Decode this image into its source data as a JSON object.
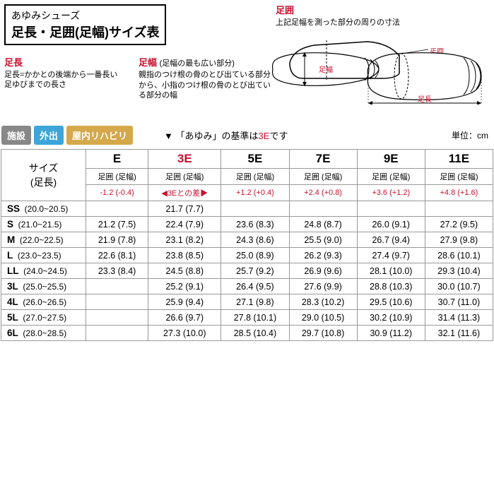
{
  "header": {
    "small": "あゆみシューズ",
    "big": "足長・足囲(足幅)サイズ表"
  },
  "labels": {
    "ashikei_title": "足囲",
    "ashikei_desc": "上記足幅を測った部分の周りの寸法",
    "ashicho_title": "足長",
    "ashicho_desc": "足長=かかとの後端から一番長い足ゆびまでの長さ",
    "ashihaba_title": "足幅",
    "ashihaba_note": "(足幅の最も広い部分)",
    "ashihaba_desc": "親指のつけ根の骨のとび出ている部分から、小指のつけ根の骨のとび出ている部分の幅",
    "diagram_ashihaba": "足幅",
    "diagram_ashikei": "足囲",
    "diagram_ashicho": "足長"
  },
  "badges": {
    "b1": "施設",
    "b2": "外出",
    "b3": "屋内リハビリ"
  },
  "badges_note_pre": "▼ 「あゆみ」の基準は",
  "badges_note_red": "3E",
  "badges_note_post": "です",
  "unit": "単位：cm",
  "column_header_label": "サイズ\n(足長)",
  "column_sub": "足囲 (足幅)",
  "column_diff_marker": "◀3Eとの差▶",
  "widths": [
    "E",
    "3E",
    "5E",
    "7E",
    "9E",
    "11E"
  ],
  "diffs": [
    "-1.2 (-0.4)",
    "",
    "+1.2 (+0.4)",
    "+2.4 (+0.8)",
    "+3.6 (+1.2)",
    "+4.8 (+1.6)"
  ],
  "size_rows": [
    {
      "code": "SS",
      "range": "(20.0~20.5)",
      "vals": [
        "",
        "21.7 (7.7)",
        "",
        "",
        "",
        ""
      ]
    },
    {
      "code": "S",
      "range": "(21.0~21.5)",
      "vals": [
        "21.2 (7.5)",
        "22.4 (7.9)",
        "23.6 (8.3)",
        "24.8 (8.7)",
        "26.0 (9.1)",
        "27.2 (9.5)"
      ]
    },
    {
      "code": "M",
      "range": "(22.0~22.5)",
      "vals": [
        "21.9 (7.8)",
        "23.1 (8.2)",
        "24.3 (8.6)",
        "25.5 (9.0)",
        "26.7 (9.4)",
        "27.9 (9.8)"
      ]
    },
    {
      "code": "L",
      "range": "(23.0~23.5)",
      "vals": [
        "22.6 (8.1)",
        "23.8 (8.5)",
        "25.0 (8.9)",
        "26.2 (9.3)",
        "27.4 (9.7)",
        "28.6 (10.1)"
      ]
    },
    {
      "code": "LL",
      "range": "(24.0~24.5)",
      "vals": [
        "23.3 (8.4)",
        "24.5 (8.8)",
        "25.7 (9.2)",
        "26.9 (9.6)",
        "28.1 (10.0)",
        "29.3 (10.4)"
      ]
    },
    {
      "code": "3L",
      "range": "(25.0~25.5)",
      "vals": [
        "",
        "25.2 (9.1)",
        "26.4 (9.5)",
        "27.6 (9.9)",
        "28.8 (10.3)",
        "30.0 (10.7)"
      ]
    },
    {
      "code": "4L",
      "range": "(26.0~26.5)",
      "vals": [
        "",
        "25.9 (9.4)",
        "27.1 (9.8)",
        "28.3 (10.2)",
        "29.5 (10.6)",
        "30.7 (11.0)"
      ]
    },
    {
      "code": "5L",
      "range": "(27.0~27.5)",
      "vals": [
        "",
        "26.6 (9.7)",
        "27.8 (10.1)",
        "29.0 (10.5)",
        "30.2 (10.9)",
        "31.4 (11.3)"
      ]
    },
    {
      "code": "6L",
      "range": "(28.0~28.5)",
      "vals": [
        "",
        "27.3 (10.0)",
        "28.5 (10.4)",
        "29.7 (10.8)",
        "30.9 (11.2)",
        "32.1 (11.6)"
      ]
    }
  ],
  "colors": {
    "red": "#c8102e",
    "badge_gray": "#888888",
    "badge_blue": "#3da5d9",
    "badge_orange": "#d4a84b",
    "border": "#999999"
  }
}
